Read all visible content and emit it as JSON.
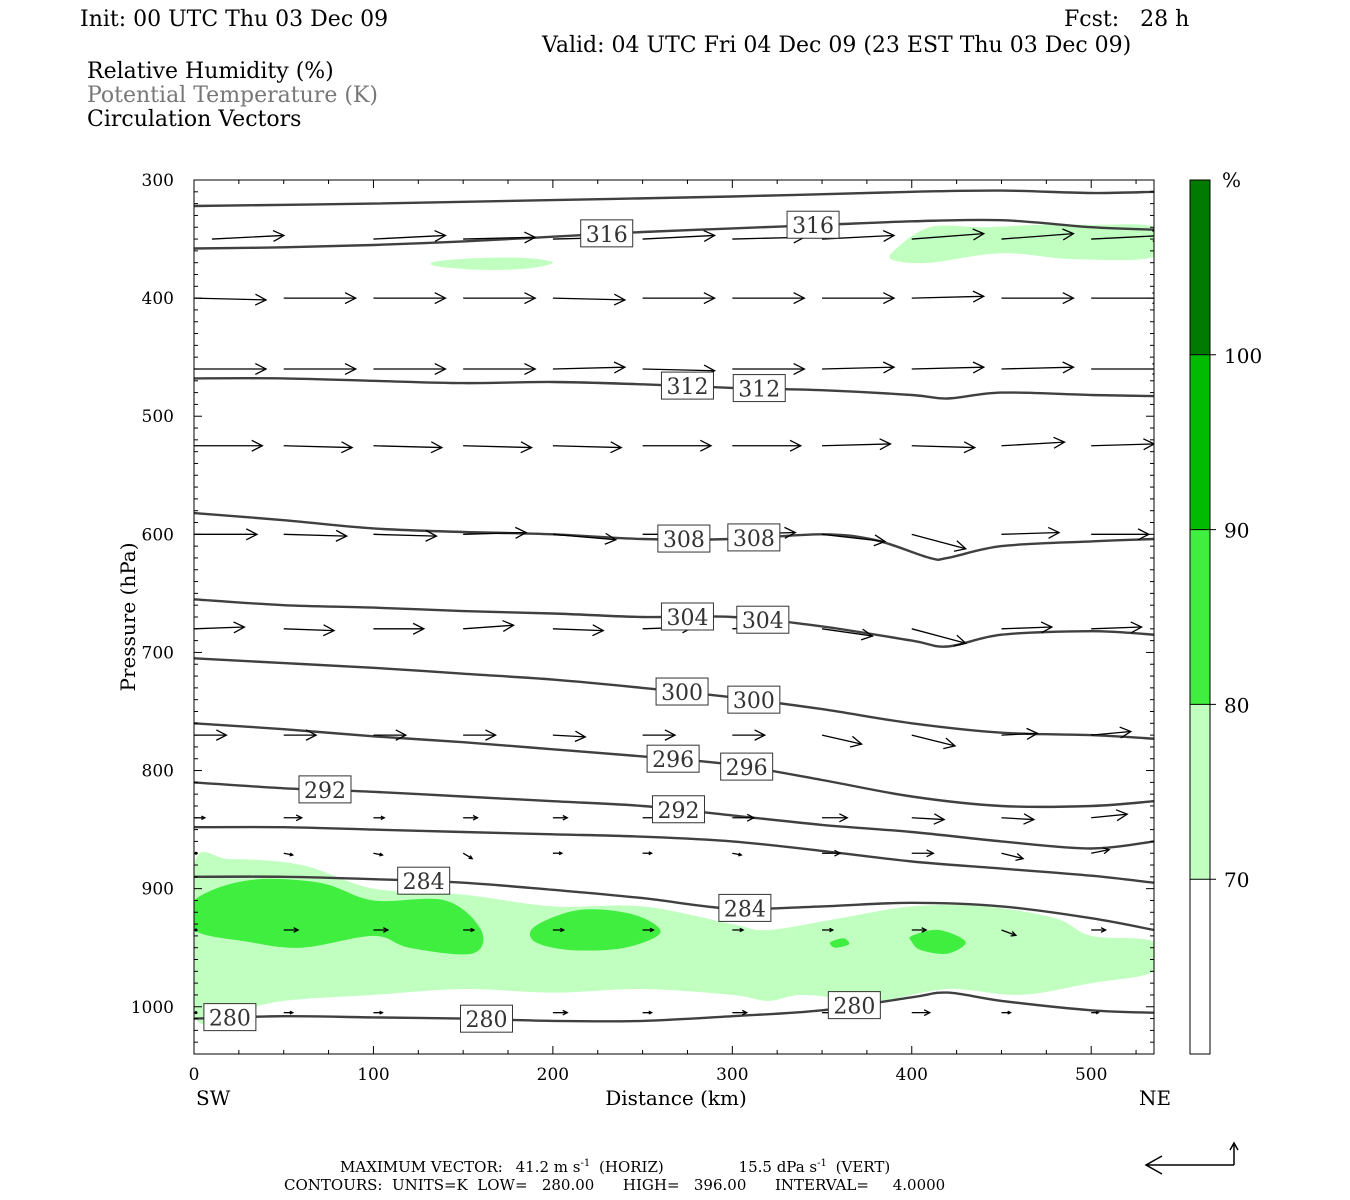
{
  "header": {
    "init": "Init: 00 UTC Thu 03 Dec 09",
    "fcst": "Fcst:   28 h",
    "valid": "Valid: 04 UTC Fri 04 Dec 09 (23 EST Thu 03 Dec 09)",
    "field1": "Relative Humidity (%)",
    "field2": "Potential Temperature (K)",
    "field3": "Circulation Vectors"
  },
  "footer": {
    "maxvec_label": "MAXIMUM VECTOR:",
    "maxvec_h": "41.2 m s",
    "maxvec_h_unit": "(HORIZ)",
    "maxvec_v": "15.5 dPa s",
    "maxvec_v_unit": "(VERT)",
    "exp": "-1",
    "contours": "CONTOURS:  UNITS=K  LOW=   280.00      HIGH=   396.00      INTERVAL=     4.0000"
  },
  "colors": {
    "rh_70": "#c0ffc0",
    "rh_80": "#40ee40",
    "rh_90": "#00bb00",
    "rh_100": "#007a00",
    "theta_line": "#404040",
    "vector": "#000000"
  },
  "chart_data": {
    "type": "cross-section",
    "xlabel": "Distance (km)",
    "ylabel": "Pressure (hPa)",
    "x_left_label": "SW",
    "x_right_label": "NE",
    "xlim": [
      0,
      535
    ],
    "ylim": [
      1040,
      300
    ],
    "x_ticks": [
      0,
      100,
      200,
      300,
      400,
      500
    ],
    "y_ticks": [
      300,
      400,
      500,
      600,
      700,
      800,
      900,
      1000
    ],
    "colorbar": {
      "unit": "%",
      "levels": [
        70,
        80,
        90,
        100
      ],
      "range": [
        60,
        110
      ]
    },
    "theta_contours": [
      {
        "value": 316,
        "x": [
          0,
          50,
          100,
          150,
          200,
          250,
          300,
          350,
          400,
          450,
          500,
          535
        ],
        "p": [
          358,
          357,
          355,
          352,
          348,
          344,
          341,
          338,
          335,
          334,
          340,
          342
        ],
        "labels_at": [
          230,
          345
        ]
      },
      {
        "value": 320,
        "x": [
          0,
          100,
          200,
          300,
          400,
          450,
          500,
          535
        ],
        "p": [
          322,
          320,
          317,
          314,
          310,
          309,
          311,
          310
        ],
        "labels_at": []
      },
      {
        "value": 312,
        "x": [
          0,
          50,
          100,
          150,
          200,
          250,
          300,
          350,
          400,
          420,
          450,
          500,
          535
        ],
        "p": [
          468,
          468,
          470,
          472,
          471,
          473,
          476,
          478,
          482,
          485,
          480,
          482,
          483
        ],
        "labels_at": [
          275,
          315
        ]
      },
      {
        "value": 308,
        "x": [
          0,
          50,
          100,
          150,
          200,
          250,
          300,
          350,
          380,
          410,
          420,
          450,
          500,
          535
        ],
        "p": [
          582,
          588,
          595,
          598,
          600,
          604,
          604,
          600,
          605,
          620,
          620,
          610,
          606,
          604
        ],
        "labels_at": [
          273,
          312
        ]
      },
      {
        "value": 304,
        "x": [
          0,
          50,
          100,
          150,
          200,
          250,
          300,
          350,
          400,
          420,
          450,
          500,
          535
        ],
        "p": [
          655,
          660,
          662,
          665,
          667,
          670,
          670,
          678,
          690,
          695,
          685,
          682,
          685
        ],
        "labels_at": [
          275,
          317
        ]
      },
      {
        "value": 300,
        "x": [
          0,
          50,
          100,
          150,
          200,
          250,
          300,
          350,
          400,
          450,
          500,
          535
        ],
        "p": [
          705,
          709,
          713,
          718,
          723,
          730,
          738,
          748,
          760,
          768,
          770,
          773
        ],
        "labels_at": [
          272,
          312
        ]
      },
      {
        "value": 296,
        "x": [
          0,
          50,
          100,
          150,
          200,
          250,
          300,
          350,
          400,
          450,
          500,
          535
        ],
        "p": [
          760,
          765,
          771,
          776,
          782,
          788,
          795,
          808,
          822,
          830,
          830,
          826
        ],
        "labels_at": [
          267,
          308
        ]
      },
      {
        "value": 292,
        "x": [
          0,
          50,
          100,
          150,
          200,
          250,
          300,
          350,
          400,
          450,
          500,
          535
        ],
        "p": [
          810,
          815,
          818,
          822,
          826,
          830,
          838,
          846,
          852,
          860,
          866,
          860
        ],
        "labels_at": [
          73,
          270
        ]
      },
      {
        "value": 288,
        "x": [
          0,
          50,
          100,
          150,
          200,
          250,
          300,
          350,
          400,
          450,
          500,
          535
        ],
        "p": [
          848,
          848,
          850,
          852,
          854,
          856,
          860,
          868,
          877,
          883,
          889,
          895
        ],
        "labels_at": []
      },
      {
        "value": 284,
        "x": [
          0,
          50,
          100,
          150,
          200,
          250,
          300,
          350,
          400,
          450,
          500,
          535
        ],
        "p": [
          890,
          890,
          892,
          895,
          901,
          908,
          917,
          915,
          912,
          915,
          925,
          935
        ],
        "labels_at": [
          128,
          307
        ]
      },
      {
        "value": 280,
        "x": [
          0,
          50,
          100,
          150,
          200,
          250,
          300,
          350,
          400,
          420,
          450,
          500,
          535
        ],
        "p": [
          1010,
          1008,
          1009,
          1010,
          1012,
          1012,
          1008,
          1003,
          992,
          988,
          995,
          1003,
          1005
        ],
        "labels_at": [
          20,
          163,
          368
        ]
      }
    ],
    "rh_regions": [
      {
        "level": 70,
        "x": [
          0,
          20,
          60,
          100,
          150,
          200,
          250,
          300,
          320,
          360,
          400,
          440,
          480,
          500,
          535,
          535,
          500,
          460,
          420,
          380,
          340,
          320,
          300,
          250,
          200,
          150,
          100,
          50,
          20,
          0
        ],
        "p": [
          880,
          875,
          880,
          900,
          905,
          915,
          915,
          930,
          935,
          925,
          915,
          915,
          925,
          940,
          945,
          970,
          980,
          990,
          985,
          995,
          990,
          995,
          990,
          985,
          988,
          985,
          990,
          995,
          1005,
          1005
        ]
      },
      {
        "level": 70,
        "x": [
          390,
          410,
          440,
          470,
          500,
          535,
          535,
          490,
          450,
          410,
          390
        ],
        "p": [
          360,
          340,
          340,
          338,
          338,
          340,
          365,
          367,
          362,
          370,
          368
        ]
      },
      {
        "level": 70,
        "x": [
          135,
          160,
          185,
          200,
          185,
          160,
          135
        ],
        "p": [
          369,
          366,
          366,
          370,
          375,
          376,
          373
        ]
      },
      {
        "level": 80,
        "x": [
          0,
          30,
          70,
          100,
          140,
          160,
          155,
          120,
          100,
          60,
          30,
          0
        ],
        "p": [
          910,
          893,
          895,
          910,
          910,
          935,
          955,
          950,
          940,
          950,
          945,
          935
        ]
      },
      {
        "level": 80,
        "x": [
          190,
          215,
          245,
          260,
          240,
          210,
          190
        ],
        "p": [
          932,
          918,
          922,
          937,
          950,
          952,
          945
        ]
      },
      {
        "level": 80,
        "x": [
          400,
          415,
          430,
          420,
          405,
          400
        ],
        "p": [
          940,
          935,
          945,
          955,
          952,
          945
        ]
      },
      {
        "level": 80,
        "x": [
          355,
          362,
          365,
          358,
          355
        ],
        "p": [
          945,
          942,
          947,
          950,
          948
        ]
      }
    ],
    "vectors": [
      {
        "p": 350,
        "x": [
          10,
          100,
          150,
          200,
          250,
          300,
          350,
          400,
          450,
          500
        ],
        "u": [
          40,
          40,
          40,
          40,
          40,
          40,
          40,
          40,
          40,
          40
        ],
        "v": [
          -2,
          -2,
          -1,
          -1,
          -2,
          -1,
          -2,
          -3,
          -3,
          -2
        ]
      },
      {
        "p": 400,
        "x": [
          0,
          50,
          100,
          150,
          200,
          250,
          300,
          350,
          400,
          450,
          500
        ],
        "u": [
          40,
          40,
          40,
          40,
          40,
          40,
          40,
          40,
          40,
          40,
          40
        ],
        "v": [
          1,
          0,
          0,
          0,
          1,
          0,
          0,
          0,
          -1,
          0,
          0
        ]
      },
      {
        "p": 460,
        "x": [
          0,
          50,
          100,
          150,
          200,
          250,
          300,
          350,
          400,
          450,
          500
        ],
        "u": [
          40,
          40,
          40,
          40,
          40,
          40,
          40,
          40,
          40,
          40,
          40
        ],
        "v": [
          0,
          0,
          0,
          0,
          -1,
          1,
          0,
          -1,
          -1,
          -1,
          0
        ]
      },
      {
        "p": 525,
        "x": [
          0,
          50,
          100,
          150,
          200,
          250,
          300,
          350,
          400,
          450,
          500
        ],
        "u": [
          38,
          38,
          38,
          38,
          38,
          38,
          38,
          38,
          35,
          35,
          35
        ],
        "v": [
          0,
          1,
          1,
          1,
          1,
          0,
          0,
          -1,
          1,
          -2,
          -1
        ]
      },
      {
        "p": 600,
        "x": [
          0,
          50,
          100,
          150,
          200,
          250,
          300,
          350,
          400,
          450,
          500
        ],
        "u": [
          35,
          35,
          35,
          35,
          35,
          35,
          35,
          35,
          30,
          32,
          32
        ],
        "v": [
          0,
          1,
          1,
          -1,
          3,
          0,
          -1,
          4,
          8,
          -1,
          0
        ]
      },
      {
        "p": 680,
        "x": [
          0,
          50,
          100,
          150,
          200,
          250,
          300,
          350,
          400,
          450,
          500
        ],
        "u": [
          28,
          28,
          28,
          28,
          28,
          28,
          28,
          28,
          30,
          28,
          28
        ],
        "v": [
          -1,
          1,
          0,
          -2,
          1,
          -1,
          -2,
          4,
          8,
          -1,
          -1
        ]
      },
      {
        "p": 770,
        "x": [
          0,
          50,
          100,
          150,
          200,
          250,
          300,
          350,
          400,
          450,
          500
        ],
        "u": [
          18,
          18,
          18,
          18,
          18,
          18,
          18,
          22,
          24,
          20,
          22
        ],
        "v": [
          0,
          0,
          0,
          0,
          1,
          0,
          0,
          5,
          6,
          -1,
          -2
        ]
      },
      {
        "p": 840,
        "x": [
          0,
          50,
          100,
          150,
          200,
          250,
          300,
          350,
          400,
          450,
          500
        ],
        "u": [
          6,
          10,
          6,
          8,
          8,
          12,
          12,
          14,
          18,
          18,
          20
        ],
        "v": [
          0,
          0,
          0,
          0,
          0,
          0,
          0,
          0,
          1,
          1,
          -2
        ]
      },
      {
        "p": 870,
        "x": [
          0,
          50,
          100,
          150,
          200,
          250,
          300,
          350,
          400,
          450,
          500
        ],
        "u": [
          0,
          5,
          5,
          5,
          5,
          5,
          5,
          10,
          12,
          12,
          10
        ],
        "v": [
          0,
          1,
          1,
          3,
          0,
          0,
          1,
          0,
          0,
          3,
          -2
        ]
      },
      {
        "p": 935,
        "x": [
          0,
          50,
          100,
          150,
          200,
          250,
          300,
          350,
          400,
          450,
          500
        ],
        "u": [
          0,
          8,
          8,
          6,
          6,
          6,
          6,
          6,
          8,
          8,
          8
        ],
        "v": [
          0,
          0,
          0,
          0,
          0,
          0,
          0,
          0,
          0,
          3,
          0
        ]
      },
      {
        "p": 1005,
        "x": [
          0,
          50,
          100,
          150,
          200,
          250,
          300,
          350,
          400,
          450,
          500
        ],
        "u": [
          0,
          5,
          5,
          5,
          8,
          5,
          8,
          5,
          10,
          5,
          4
        ],
        "v": [
          0,
          0,
          0,
          0,
          0,
          0,
          0,
          0,
          0,
          0,
          0
        ]
      }
    ]
  }
}
